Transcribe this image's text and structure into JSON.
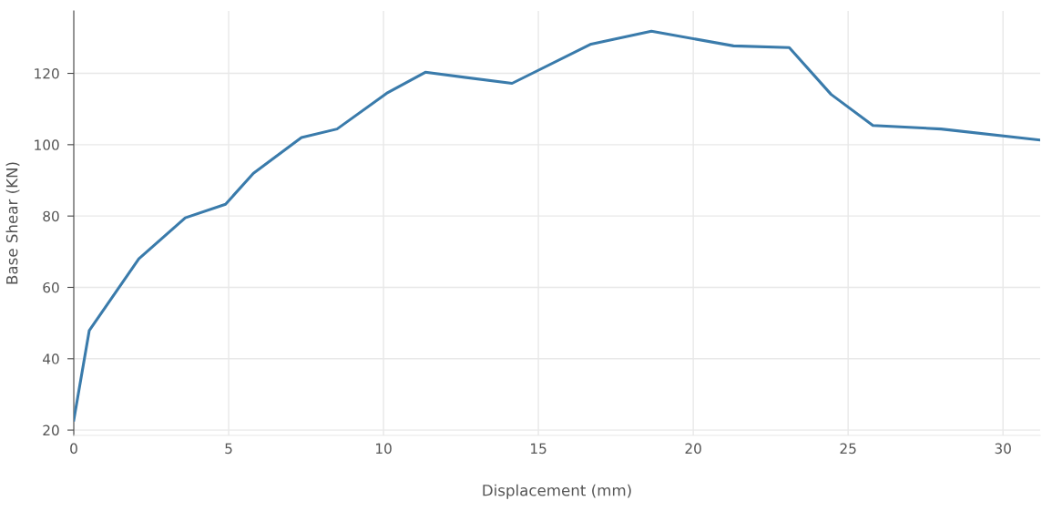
{
  "chart_data": {
    "type": "line",
    "xlabel": "Displacement (mm)",
    "ylabel": "Base Shear (KN)",
    "x": [
      0,
      0.5,
      2.1,
      3.6,
      4.9,
      5.8,
      7.35,
      8.5,
      10.1,
      11.35,
      14.15,
      16.7,
      18.65,
      21.3,
      23.1,
      24.45,
      25.8,
      28.0,
      31.2
    ],
    "series": [
      {
        "color": "#3a7bab",
        "values": [
          22.8,
          47.9,
          68,
          79.5,
          83.3,
          92,
          102,
          104.4,
          114.4,
          120.3,
          117.2,
          128.2,
          131.8,
          127.7,
          127.2,
          114.1,
          105.4,
          104.4,
          101.3
        ]
      }
    ],
    "xlim": [
      0,
      31.2
    ],
    "ylim": [
      18.5,
      137.5
    ],
    "xticks": [
      0,
      5,
      10,
      15,
      20,
      25,
      30
    ],
    "yticks": [
      20,
      40,
      60,
      80,
      100,
      120
    ],
    "grid": true,
    "marker": "none",
    "line_style": "solid"
  }
}
